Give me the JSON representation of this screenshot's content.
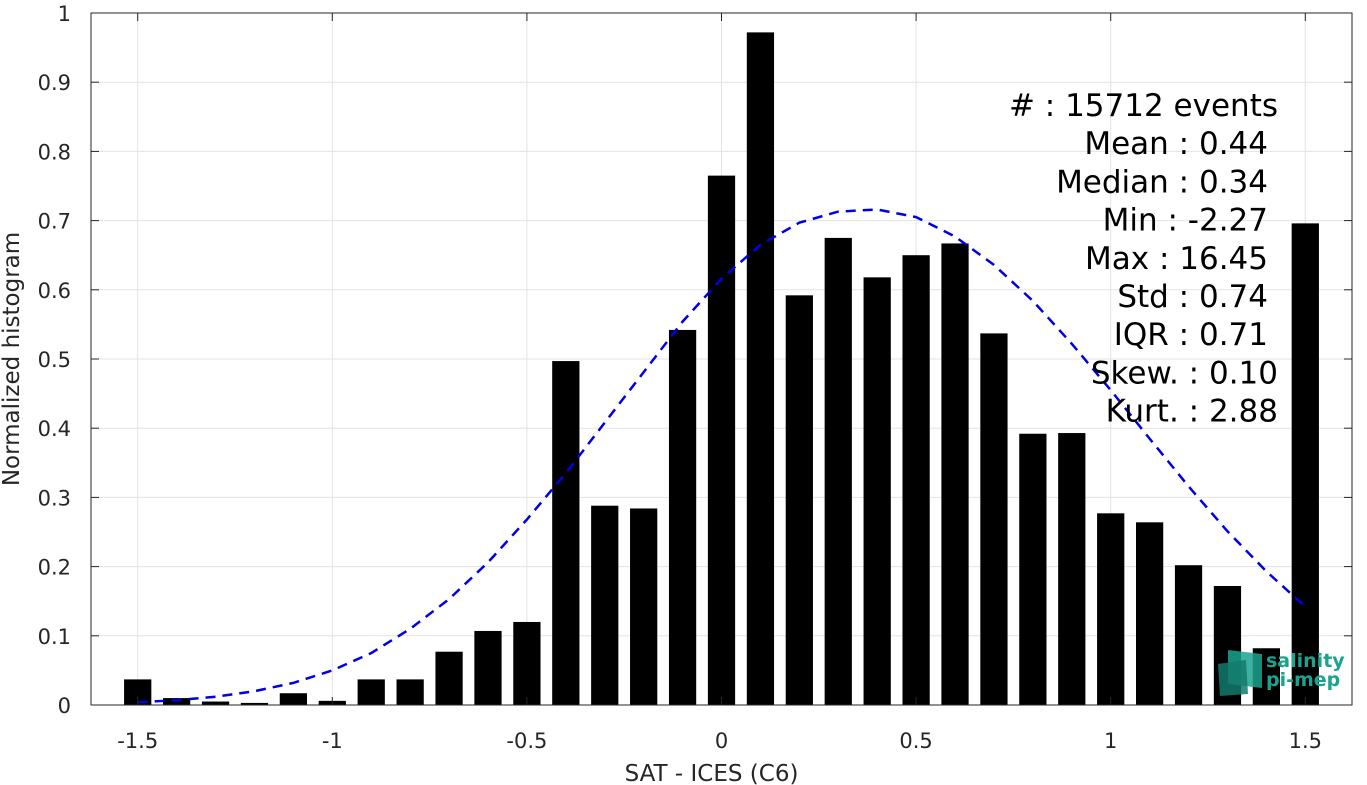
{
  "chart_data": {
    "type": "bar",
    "xlabel": "SAT - ICES (C6)",
    "ylabel": "Normalized histogram",
    "xlim": [
      -1.62,
      1.62
    ],
    "ylim": [
      0,
      1
    ],
    "grid": true,
    "xticks": [
      -1.5,
      -1,
      -0.5,
      0,
      0.5,
      1,
      1.5
    ],
    "xtick_labels": [
      "-1.5",
      "-1",
      "-0.5",
      "0",
      "0.5",
      "1",
      "1.5"
    ],
    "yticks": [
      0,
      0.1,
      0.2,
      0.3,
      0.4,
      0.5,
      0.6,
      0.7,
      0.8,
      0.9,
      1
    ],
    "ytick_labels": [
      "0",
      "0.1",
      "0.2",
      "0.3",
      "0.4",
      "0.5",
      "0.6",
      "0.7",
      "0.8",
      "0.9",
      "1"
    ],
    "bar_color": "#000000",
    "bars": {
      "x": [
        -1.5,
        -1.4,
        -1.3,
        -1.2,
        -1.1,
        -1.0,
        -0.9,
        -0.8,
        -0.7,
        -0.6,
        -0.5,
        -0.4,
        -0.3,
        -0.2,
        -0.1,
        0.0,
        0.1,
        0.2,
        0.3,
        0.4,
        0.5,
        0.6,
        0.7,
        0.8,
        0.9,
        1.0,
        1.1,
        1.2,
        1.3,
        1.4,
        1.5
      ],
      "values": [
        0.037,
        0.01,
        0.005,
        0.003,
        0.017,
        0.006,
        0.037,
        0.037,
        0.077,
        0.107,
        0.12,
        0.497,
        0.288,
        0.284,
        0.542,
        0.765,
        0.972,
        0.592,
        0.675,
        0.618,
        0.65,
        0.667,
        0.537,
        0.392,
        0.393,
        0.277,
        0.264,
        0.202,
        0.172,
        0.082,
        0.696
      ]
    },
    "fit_curve": {
      "style": "dashed",
      "color": "#0000e6",
      "x": [
        -1.5,
        -1.4,
        -1.3,
        -1.2,
        -1.1,
        -1.0,
        -0.9,
        -0.8,
        -0.7,
        -0.6,
        -0.5,
        -0.4,
        -0.3,
        -0.2,
        -0.1,
        0.0,
        0.1,
        0.2,
        0.3,
        0.4,
        0.5,
        0.6,
        0.7,
        0.8,
        0.9,
        1.0,
        1.1,
        1.2,
        1.3,
        1.4,
        1.5
      ],
      "y": [
        0.004,
        0.007,
        0.012,
        0.02,
        0.032,
        0.05,
        0.075,
        0.11,
        0.153,
        0.206,
        0.268,
        0.335,
        0.408,
        0.481,
        0.554,
        0.616,
        0.665,
        0.697,
        0.713,
        0.716,
        0.705,
        0.677,
        0.636,
        0.584,
        0.522,
        0.455,
        0.385,
        0.316,
        0.251,
        0.193,
        0.142
      ]
    },
    "annotations": [
      "#  : 15712 events",
      "Mean : 0.44",
      "Median : 0.34",
      "Min : -2.27",
      "Max : 16.45",
      "Std : 0.74",
      "IQR : 0.71",
      "Skew. : 0.10",
      "Kurt. : 2.88"
    ]
  },
  "logo": {
    "line1": "salinity",
    "line2": "pi-mep",
    "color": "#1aa38f"
  }
}
